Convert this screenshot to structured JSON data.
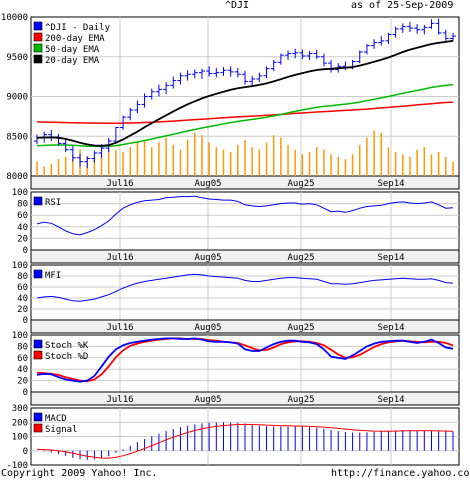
{
  "header": {
    "symbol": "^DJI",
    "as_of": "as of 25-Sep-2009"
  },
  "footer": {
    "copyright": "Copyright 2009 Yahoo! Inc.",
    "url": "http://finance.yahoo.com/"
  },
  "colors": {
    "price": "#0000ff",
    "ema200": "#ff0000",
    "ema50": "#00bb00",
    "ema20": "#000000",
    "volume": "#ff9900",
    "rsi": "#0000ff",
    "mfi": "#0000ff",
    "stochK": "#0000ff",
    "stochD": "#ff0000",
    "macd": "#0000ff",
    "signal": "#ff0000",
    "grid": "#cccccc",
    "axis_band": "#f0f0f0"
  },
  "chart_data": [
    {
      "type": "candlestick",
      "panel": "price",
      "legend": [
        "^DJI - Daily",
        "200-day EMA",
        "50-day EMA",
        "20-day EMA"
      ],
      "x_ticks": [
        "Jul16",
        "Aug05",
        "Aug25",
        "Sep14"
      ],
      "y_ticks": [
        8000,
        8500,
        9000,
        9500,
        10000
      ],
      "ylim": [
        8000,
        10000
      ],
      "ohlc": [
        [
          8440,
          8520,
          8400,
          8480
        ],
        [
          8480,
          8560,
          8420,
          8520
        ],
        [
          8520,
          8580,
          8440,
          8490
        ],
        [
          8490,
          8530,
          8380,
          8410
        ],
        [
          8410,
          8460,
          8300,
          8330
        ],
        [
          8330,
          8380,
          8180,
          8230
        ],
        [
          8230,
          8280,
          8120,
          8180
        ],
        [
          8180,
          8250,
          8100,
          8220
        ],
        [
          8220,
          8320,
          8170,
          8290
        ],
        [
          8290,
          8400,
          8230,
          8350
        ],
        [
          8350,
          8480,
          8300,
          8440
        ],
        [
          8440,
          8620,
          8420,
          8610
        ],
        [
          8610,
          8760,
          8580,
          8740
        ],
        [
          8740,
          8860,
          8700,
          8830
        ],
        [
          8830,
          8950,
          8790,
          8900
        ],
        [
          8900,
          9040,
          8860,
          9000
        ],
        [
          9000,
          9100,
          8960,
          9060
        ],
        [
          9060,
          9150,
          9000,
          9090
        ],
        [
          9090,
          9180,
          9030,
          9140
        ],
        [
          9140,
          9250,
          9100,
          9200
        ],
        [
          9200,
          9300,
          9150,
          9260
        ],
        [
          9260,
          9330,
          9200,
          9280
        ],
        [
          9280,
          9340,
          9230,
          9300
        ],
        [
          9300,
          9350,
          9220,
          9320
        ],
        [
          9320,
          9380,
          9250,
          9290
        ],
        [
          9290,
          9360,
          9240,
          9300
        ],
        [
          9300,
          9370,
          9260,
          9330
        ],
        [
          9330,
          9380,
          9250,
          9310
        ],
        [
          9310,
          9360,
          9240,
          9280
        ],
        [
          9280,
          9320,
          9150,
          9190
        ],
        [
          9190,
          9260,
          9120,
          9220
        ],
        [
          9220,
          9300,
          9180,
          9260
        ],
        [
          9260,
          9380,
          9230,
          9350
        ],
        [
          9350,
          9460,
          9320,
          9430
        ],
        [
          9430,
          9540,
          9400,
          9520
        ],
        [
          9520,
          9580,
          9460,
          9540
        ],
        [
          9540,
          9600,
          9480,
          9550
        ],
        [
          9550,
          9590,
          9470,
          9510
        ],
        [
          9510,
          9570,
          9460,
          9540
        ],
        [
          9540,
          9590,
          9470,
          9500
        ],
        [
          9500,
          9540,
          9380,
          9420
        ],
        [
          9420,
          9460,
          9300,
          9340
        ],
        [
          9340,
          9420,
          9300,
          9380
        ],
        [
          9380,
          9440,
          9330,
          9360
        ],
        [
          9360,
          9460,
          9340,
          9440
        ],
        [
          9440,
          9580,
          9420,
          9560
        ],
        [
          9560,
          9660,
          9530,
          9640
        ],
        [
          9640,
          9720,
          9600,
          9680
        ],
        [
          9680,
          9760,
          9640,
          9700
        ],
        [
          9700,
          9800,
          9660,
          9780
        ],
        [
          9780,
          9880,
          9740,
          9850
        ],
        [
          9850,
          9920,
          9800,
          9880
        ],
        [
          9880,
          9940,
          9810,
          9860
        ],
        [
          9860,
          9910,
          9790,
          9840
        ],
        [
          9840,
          9900,
          9780,
          9870
        ],
        [
          9870,
          9970,
          9850,
          9920
        ],
        [
          9920,
          9980,
          9780,
          9800
        ],
        [
          9800,
          9840,
          9680,
          9730
        ],
        [
          9730,
          9800,
          9700,
          9760
        ]
      ],
      "ema200": [
        8680,
        8678,
        8676,
        8674,
        8672,
        8670,
        8668,
        8667,
        8666,
        8665,
        8664,
        8664,
        8665,
        8667,
        8670,
        8673,
        8677,
        8681,
        8686,
        8691,
        8697,
        8703,
        8709,
        8715,
        8721,
        8727,
        8733,
        8739,
        8744,
        8749,
        8754,
        8759,
        8764,
        8769,
        8775,
        8781,
        8787,
        8793,
        8799,
        8805,
        8810,
        8815,
        8820,
        8825,
        8830,
        8836,
        8842,
        8849,
        8856,
        8863,
        8870,
        8878,
        8886,
        8894,
        8902,
        8910,
        8918,
        8925,
        8930
      ],
      "ema50": [
        8380,
        8385,
        8389,
        8391,
        8390,
        8386,
        8380,
        8375,
        8372,
        8371,
        8373,
        8382,
        8396,
        8412,
        8428,
        8447,
        8466,
        8485,
        8505,
        8525,
        8546,
        8566,
        8585,
        8604,
        8621,
        8638,
        8656,
        8672,
        8687,
        8699,
        8712,
        8724,
        8739,
        8756,
        8774,
        8794,
        8813,
        8830,
        8848,
        8863,
        8875,
        8884,
        8894,
        8904,
        8915,
        8930,
        8947,
        8965,
        8982,
        9000,
        9020,
        9040,
        9058,
        9076,
        9094,
        9114,
        9130,
        9140,
        9150
      ],
      "ema20": [
        8480,
        8484,
        8485,
        8480,
        8467,
        8444,
        8418,
        8397,
        8384,
        8380,
        8389,
        8418,
        8459,
        8508,
        8559,
        8614,
        8665,
        8714,
        8763,
        8812,
        8858,
        8902,
        8940,
        8976,
        9006,
        9034,
        9061,
        9085,
        9105,
        9118,
        9131,
        9146,
        9165,
        9190,
        9218,
        9246,
        9272,
        9294,
        9316,
        9333,
        9343,
        9349,
        9356,
        9362,
        9371,
        9389,
        9413,
        9438,
        9463,
        9491,
        9525,
        9560,
        9590,
        9614,
        9636,
        9660,
        9676,
        9687,
        9700
      ],
      "volume": [
        0.3,
        0.2,
        0.25,
        0.35,
        0.4,
        0.45,
        0.55,
        0.4,
        0.35,
        0.45,
        0.65,
        0.55,
        0.5,
        0.6,
        0.7,
        0.75,
        0.6,
        0.7,
        0.8,
        0.65,
        0.55,
        0.75,
        0.9,
        0.85,
        0.7,
        0.6,
        0.55,
        0.5,
        0.65,
        0.75,
        0.6,
        0.55,
        0.7,
        0.85,
        0.8,
        0.65,
        0.55,
        0.45,
        0.5,
        0.6,
        0.55,
        0.45,
        0.4,
        0.35,
        0.45,
        0.65,
        0.8,
        0.95,
        0.9,
        0.6,
        0.5,
        0.45,
        0.4,
        0.55,
        0.6,
        0.45,
        0.5,
        0.4,
        0.3
      ]
    },
    {
      "type": "line",
      "panel": "rsi",
      "legend": [
        "RSI"
      ],
      "x_ticks": [
        "Jul16",
        "Aug05",
        "Aug25",
        "Sep14"
      ],
      "y_ticks": [
        0,
        20,
        40,
        60,
        80,
        100
      ],
      "ylim": [
        0,
        100
      ],
      "series": [
        {
          "name": "RSI",
          "values": [
            45,
            48,
            46,
            40,
            33,
            28,
            26,
            30,
            35,
            42,
            50,
            62,
            72,
            78,
            82,
            85,
            86,
            87,
            90,
            91,
            92,
            92,
            93,
            90,
            88,
            87,
            86,
            86,
            84,
            78,
            76,
            75,
            76,
            78,
            80,
            81,
            81,
            79,
            80,
            78,
            72,
            66,
            67,
            65,
            68,
            72,
            75,
            76,
            77,
            80,
            82,
            83,
            81,
            80,
            81,
            83,
            78,
            72,
            73
          ]
        }
      ]
    },
    {
      "type": "line",
      "panel": "mfi",
      "legend": [
        "MFI"
      ],
      "x_ticks": [
        "Jul16",
        "Aug05",
        "Aug25",
        "Sep14"
      ],
      "y_ticks": [
        0,
        20,
        40,
        60,
        80,
        100
      ],
      "ylim": [
        0,
        100
      ],
      "series": [
        {
          "name": "MFI",
          "values": [
            40,
            42,
            43,
            41,
            38,
            35,
            34,
            36,
            38,
            42,
            46,
            52,
            58,
            63,
            67,
            70,
            72,
            74,
            76,
            78,
            80,
            82,
            83,
            82,
            80,
            79,
            78,
            77,
            76,
            72,
            70,
            70,
            72,
            74,
            76,
            77,
            77,
            76,
            75,
            74,
            70,
            66,
            66,
            65,
            66,
            68,
            70,
            72,
            73,
            74,
            75,
            76,
            75,
            74,
            74,
            75,
            72,
            68,
            67
          ]
        }
      ]
    },
    {
      "type": "line",
      "panel": "stoch",
      "legend": [
        "Stoch %K",
        "Stoch %D"
      ],
      "x_ticks": [
        "Jul16",
        "Aug05",
        "Aug25",
        "Sep14"
      ],
      "y_ticks": [
        0,
        20,
        40,
        60,
        80,
        100
      ],
      "ylim": [
        0,
        100
      ],
      "series": [
        {
          "name": "Stoch %K",
          "values": [
            30,
            32,
            31,
            26,
            22,
            20,
            18,
            20,
            28,
            45,
            62,
            75,
            82,
            86,
            88,
            90,
            92,
            93,
            94,
            94,
            93,
            93,
            94,
            92,
            89,
            88,
            88,
            87,
            85,
            75,
            72,
            72,
            78,
            84,
            88,
            90,
            90,
            88,
            87,
            84,
            75,
            62,
            60,
            58,
            64,
            72,
            80,
            85,
            88,
            89,
            90,
            90,
            88,
            86,
            88,
            92,
            86,
            78,
            76
          ]
        },
        {
          "name": "Stoch %D",
          "values": [
            34,
            33,
            32,
            30,
            26,
            23,
            20,
            19,
            22,
            31,
            45,
            61,
            73,
            81,
            85,
            88,
            90,
            92,
            93,
            94,
            94,
            93,
            93,
            93,
            91,
            90,
            88,
            87,
            86,
            82,
            77,
            73,
            74,
            78,
            84,
            87,
            89,
            89,
            88,
            86,
            82,
            74,
            66,
            60,
            61,
            65,
            72,
            79,
            84,
            87,
            89,
            90,
            89,
            88,
            87,
            88,
            88,
            86,
            82
          ]
        }
      ]
    },
    {
      "type": "line+bar",
      "panel": "macd",
      "legend": [
        "MACD",
        "Signal"
      ],
      "x_ticks": [
        "Jul16",
        "Aug05",
        "Aug25",
        "Sep14"
      ],
      "y_ticks": [
        -100,
        0,
        100,
        200,
        300
      ],
      "ylim": [
        -100,
        300
      ],
      "series": [
        {
          "name": "MACD",
          "values": [
            0,
            -5,
            -12,
            -22,
            -35,
            -50,
            -60,
            -65,
            -62,
            -55,
            -40,
            -15,
            10,
            35,
            60,
            82,
            102,
            120,
            138,
            152,
            165,
            176,
            185,
            192,
            196,
            198,
            199,
            198,
            196,
            190,
            182,
            176,
            172,
            170,
            170,
            170,
            170,
            168,
            166,
            162,
            155,
            145,
            138,
            132,
            128,
            128,
            130,
            133,
            136,
            140,
            143,
            145,
            144,
            142,
            140,
            140,
            138,
            136,
            134
          ]
        },
        {
          "name": "Signal",
          "values": [
            10,
            8,
            5,
            0,
            -8,
            -18,
            -28,
            -38,
            -46,
            -51,
            -52,
            -46,
            -35,
            -20,
            -3,
            16,
            36,
            56,
            76,
            95,
            112,
            128,
            142,
            154,
            164,
            171,
            177,
            181,
            184,
            185,
            184,
            182,
            180,
            178,
            176,
            175,
            174,
            173,
            171,
            169,
            166,
            162,
            157,
            152,
            147,
            143,
            140,
            138,
            137,
            137,
            138,
            139,
            140,
            140,
            140,
            140,
            139,
            138,
            137
          ]
        }
      ]
    }
  ]
}
